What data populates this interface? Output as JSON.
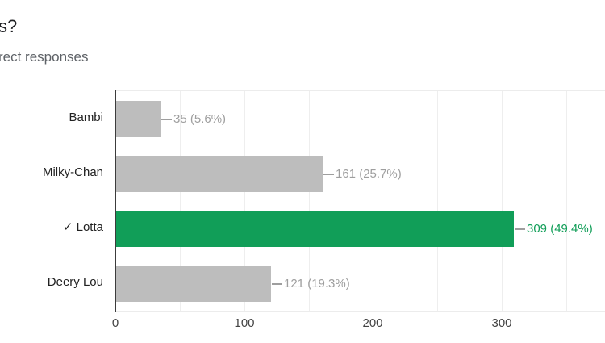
{
  "header": {
    "question_fragment": "s?",
    "responses_fragment": "rect responses"
  },
  "chart_data": {
    "type": "bar",
    "orientation": "horizontal",
    "categories": [
      "Bambi",
      "Milky-Chan",
      "✓ Lotta",
      "Deery Lou"
    ],
    "values": [
      35,
      161,
      309,
      121
    ],
    "value_labels": [
      "35 (5.6%)",
      "161 (25.7%)",
      "309 (49.4%)",
      "121 (19.3%)"
    ],
    "correct_index": 2,
    "x_ticks": [
      0,
      100,
      200,
      300
    ],
    "xlim": [
      0,
      380
    ],
    "grid": true,
    "legend": "none",
    "xlabel": "",
    "ylabel": "",
    "colors": {
      "bar": "#bdbdbd",
      "correct_bar": "#119e58",
      "value_label": "#9e9e9e",
      "correct_value_label": "#119e58",
      "category_label": "#212121",
      "tick_label": "#444444",
      "axis_line": "#3c3c3c",
      "gridline": "#eeeeee",
      "callout": "#9e9e9e"
    }
  }
}
